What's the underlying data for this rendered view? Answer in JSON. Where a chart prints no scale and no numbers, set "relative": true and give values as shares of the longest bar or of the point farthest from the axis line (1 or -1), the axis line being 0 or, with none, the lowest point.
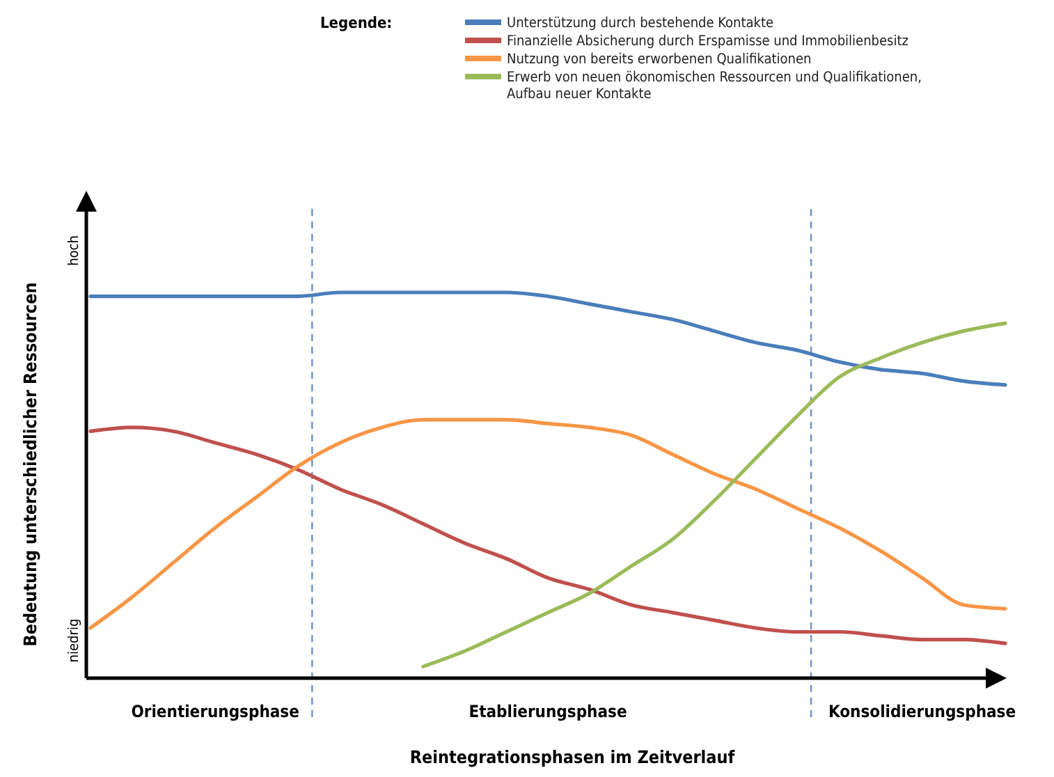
{
  "chart_data": {
    "type": "line",
    "relative": true,
    "legend_title": "Legende:",
    "legend": "top",
    "xlabel": "Reintegrationsphasen im Zeitverlauf",
    "ylabel": "Bedeutung unterschiedlicher Ressourcen",
    "categories": [
      null,
      null,
      null,
      "Orientierungsphase",
      null,
      null,
      null,
      null,
      null,
      null,
      null,
      "Etablierungsphase",
      null,
      null,
      null,
      null,
      null,
      null,
      null,
      null,
      "Konsolidierungsphase",
      null,
      null
    ],
    "series": [
      {
        "name": "Unterstützung durch bestehende Kontakte",
        "color": "#4a7ebb",
        "values": [
          0.99,
          0.99,
          0.99,
          0.99,
          0.99,
          0.99,
          1,
          1,
          1,
          1,
          1,
          0.99,
          0.97,
          0.95,
          0.93,
          0.9,
          0.87,
          0.85,
          0.82,
          0.8,
          0.79,
          0.77,
          0.76
        ]
      },
      {
        "name": "Finanzielle Absicherung durch Erspamisse  und Immobilienbesitz",
        "color": "#c0504d",
        "values": [
          0.64,
          0.65,
          0.64,
          0.61,
          0.58,
          0.54,
          0.49,
          0.45,
          0.4,
          0.35,
          0.31,
          0.26,
          0.23,
          0.19,
          0.17,
          0.15,
          0.13,
          0.12,
          0.12,
          0.11,
          0.1,
          0.1,
          0.09
        ]
      },
      {
        "name": "Nutzung von bereits erworbenen Qualifikationen",
        "color": "#f79646",
        "values": [
          0.13,
          0.21,
          0.3,
          0.39,
          0.47,
          0.55,
          0.61,
          0.65,
          0.67,
          0.67,
          0.67,
          0.66,
          0.65,
          0.63,
          0.58,
          0.53,
          0.49,
          0.44,
          0.39,
          0.33,
          0.26,
          0.19,
          0.18
        ]
      },
      {
        "name": "Erwerb von neuen ökonomischen Ressourcen und Qualifikationen, Aufbau neuer Kontakte",
        "color": "#9bbb59",
        "values": [
          null,
          null,
          null,
          null,
          null,
          null,
          null,
          null,
          0.03,
          0.07,
          0.12,
          0.17,
          0.22,
          0.29,
          0.36,
          0.46,
          0.57,
          0.68,
          0.78,
          0.83,
          0.87,
          0.9,
          0.92
        ]
      }
    ],
    "annotations": [
      "hoch",
      "niedrig"
    ]
  }
}
